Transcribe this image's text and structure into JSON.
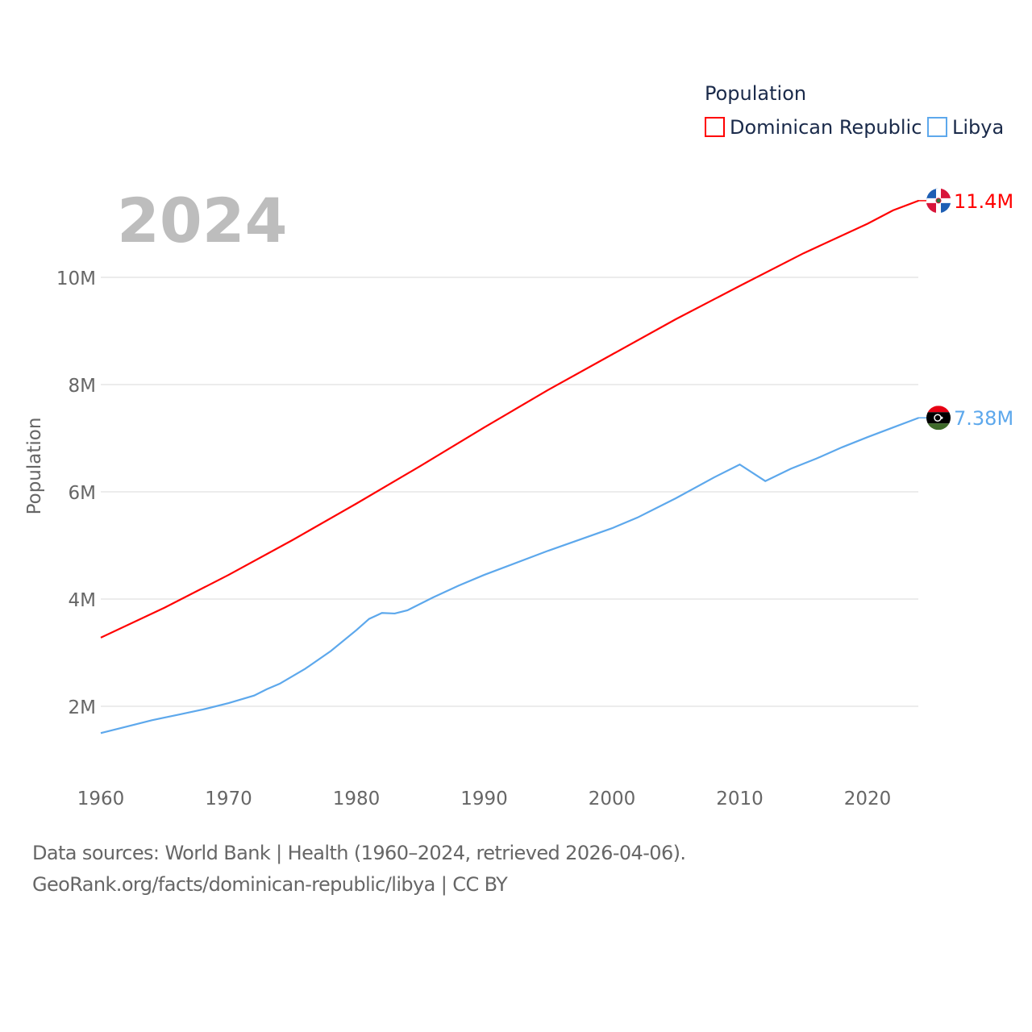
{
  "chart_data": {
    "type": "line",
    "year_label": "2024",
    "ylabel": "Population",
    "legend": {
      "title": "Population",
      "placement": "top-right",
      "entries": [
        "Dominican Republic",
        "Libya"
      ]
    },
    "xlim": [
      1960,
      2024
    ],
    "ylim": [
      0,
      12
    ],
    "x_ticks": [
      1960,
      1970,
      1980,
      1990,
      2000,
      2010,
      2020
    ],
    "x_tick_labels": [
      "1960",
      "1970",
      "1980",
      "1990",
      "2000",
      "2010",
      "2020"
    ],
    "y_ticks": [
      2,
      4,
      6,
      8,
      10
    ],
    "y_tick_labels": [
      "2M",
      "4M",
      "6M",
      "8M",
      "10M"
    ],
    "grid": true,
    "series": [
      {
        "name": "Dominican Republic",
        "color": "#ff0000",
        "end_label": "11.4M",
        "x": [
          1960,
          1965,
          1970,
          1975,
          1980,
          1985,
          1990,
          1995,
          2000,
          2005,
          2010,
          2015,
          2020,
          2022,
          2024
        ],
        "values": [
          3.28,
          3.84,
          4.45,
          5.1,
          5.78,
          6.48,
          7.2,
          7.9,
          8.56,
          9.22,
          9.84,
          10.45,
          11.0,
          11.25,
          11.43
        ]
      },
      {
        "name": "Libya",
        "color": "#5da8ec",
        "end_label": "7.38M",
        "x": [
          1960,
          1962,
          1964,
          1966,
          1968,
          1970,
          1972,
          1973,
          1974,
          1976,
          1978,
          1980,
          1981,
          1982,
          1983,
          1984,
          1986,
          1988,
          1990,
          1995,
          2000,
          2002,
          2005,
          2008,
          2010,
          2012,
          2014,
          2016,
          2018,
          2020,
          2022,
          2024
        ],
        "values": [
          1.5,
          1.62,
          1.74,
          1.84,
          1.94,
          2.06,
          2.2,
          2.32,
          2.42,
          2.7,
          3.03,
          3.42,
          3.63,
          3.74,
          3.73,
          3.79,
          4.03,
          4.25,
          4.45,
          4.9,
          5.32,
          5.52,
          5.88,
          6.27,
          6.51,
          6.2,
          6.43,
          6.62,
          6.83,
          7.02,
          7.2,
          7.38
        ]
      }
    ]
  },
  "footer": {
    "line1": "Data sources: World Bank | Health (1960–2024, retrieved 2026-04-06).",
    "line2": "GeoRank.org/facts/dominican-republic/libya | CC BY"
  }
}
